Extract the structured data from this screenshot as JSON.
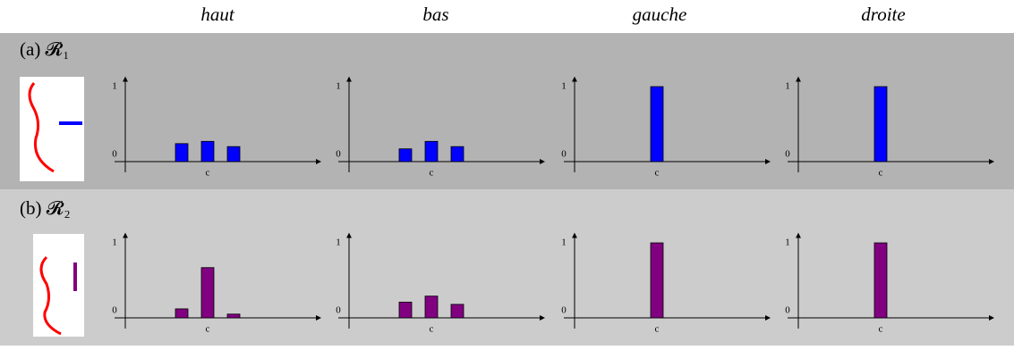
{
  "columns": [
    "haut",
    "bas",
    "gauche",
    "droite"
  ],
  "rows": [
    "(a) 𝓡₁",
    "(b) 𝓡₂"
  ],
  "chart_data": [
    {
      "type": "bar",
      "categories": [
        null,
        "c",
        null
      ],
      "values": [
        0.24,
        0.27,
        0.2
      ],
      "color": "#0000ff",
      "ylim": [
        0,
        1.1
      ],
      "yticks": [
        0,
        1
      ]
    },
    {
      "type": "bar",
      "categories": [
        null,
        "c",
        null
      ],
      "values": [
        0.17,
        0.27,
        0.2
      ],
      "color": "#0000ff",
      "ylim": [
        0,
        1.1
      ],
      "yticks": [
        0,
        1
      ]
    },
    {
      "type": "bar",
      "categories": [
        null,
        "c",
        null
      ],
      "values": [
        0,
        1,
        0
      ],
      "color": "#0000ff",
      "ylim": [
        0,
        1.1
      ],
      "yticks": [
        0,
        1
      ]
    },
    {
      "type": "bar",
      "categories": [
        null,
        "c",
        null
      ],
      "values": [
        0,
        1,
        0
      ],
      "color": "#0000ff",
      "ylim": [
        0,
        1.1
      ],
      "yticks": [
        0,
        1
      ]
    },
    {
      "type": "bar",
      "categories": [
        null,
        "c",
        null
      ],
      "values": [
        0.12,
        0.67,
        0.05
      ],
      "color": "#800080",
      "ylim": [
        0,
        1.1
      ],
      "yticks": [
        0,
        1
      ]
    },
    {
      "type": "bar",
      "categories": [
        null,
        "c",
        null
      ],
      "values": [
        0.21,
        0.29,
        0.18
      ],
      "color": "#800080",
      "ylim": [
        0,
        1.1
      ],
      "yticks": [
        0,
        1
      ]
    },
    {
      "type": "bar",
      "categories": [
        null,
        "c",
        null
      ],
      "values": [
        0,
        1,
        0
      ],
      "color": "#800080",
      "ylim": [
        0,
        1.1
      ],
      "yticks": [
        0,
        1
      ]
    },
    {
      "type": "bar",
      "categories": [
        null,
        "c",
        null
      ],
      "values": [
        0,
        1,
        0
      ],
      "color": "#800080",
      "ylim": [
        0,
        1.1
      ],
      "yticks": [
        0,
        1
      ]
    }
  ]
}
